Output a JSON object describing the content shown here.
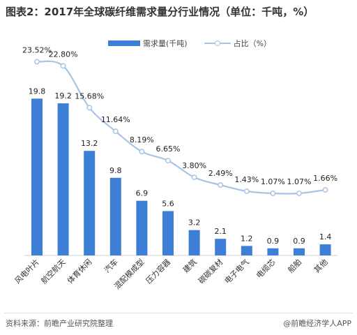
{
  "title": "图表2：2017年全球碳纤维需求量分行业情况（单位：千吨，%）",
  "legend": {
    "bar_label": "需求量(千吨)",
    "line_label": "占比（%）"
  },
  "footer": {
    "source": "资料来源：前瞻产业研究院整理",
    "brand": "@前瞻经济学人APP"
  },
  "colors": {
    "bar": "#3d7fd6",
    "line": "#a9c4e4",
    "text": "#222222"
  },
  "chart_data": {
    "type": "bar",
    "title": "图表2：2017年全球碳纤维需求量分行业情况（单位：千吨，%）",
    "categories": [
      "风电叶片",
      "航空航天",
      "体育休闲",
      "汽车",
      "混配模成型",
      "压力容器",
      "建筑",
      "碳碳复材",
      "电子电气",
      "电缆芯",
      "船舶",
      "其他"
    ],
    "series": [
      {
        "name": "需求量(千吨)",
        "type": "bar",
        "values": [
          19.8,
          19.2,
          13.2,
          9.8,
          6.9,
          5.6,
          3.2,
          2.1,
          1.2,
          0.9,
          0.9,
          1.4
        ]
      },
      {
        "name": "占比（%）",
        "type": "line",
        "values": [
          23.52,
          22.8,
          15.68,
          11.64,
          8.19,
          6.65,
          3.8,
          2.49,
          1.43,
          1.07,
          1.07,
          1.66
        ],
        "labels": [
          "23.52%",
          "22.80%",
          "15.68%",
          "11.64%",
          "8.19%",
          "6.65%",
          "3.80%",
          "2.49%",
          "1.43%",
          "1.07%",
          "1.07%",
          "1.66%"
        ]
      }
    ],
    "grid": false,
    "legend_position": "top-center"
  }
}
